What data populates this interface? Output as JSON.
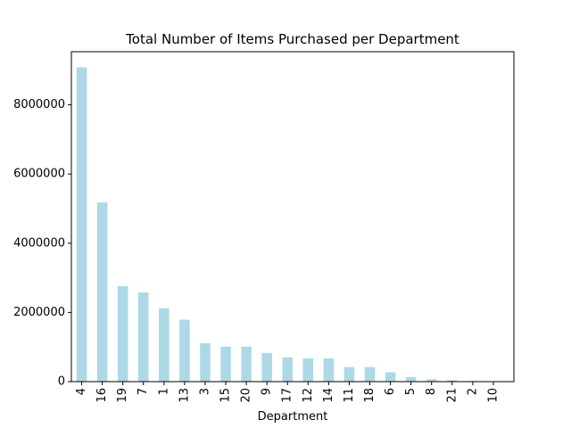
{
  "chart_data": {
    "type": "bar",
    "title": "Total Number of Items Purchased per Department",
    "xlabel": "Department",
    "ylabel": "",
    "categories": [
      "4",
      "16",
      "19",
      "7",
      "1",
      "13",
      "3",
      "15",
      "20",
      "9",
      "17",
      "12",
      "14",
      "11",
      "18",
      "6",
      "5",
      "8",
      "21",
      "2",
      "10"
    ],
    "values": [
      9080000,
      5180000,
      2760000,
      2580000,
      2120000,
      1790000,
      1110000,
      1010000,
      1010000,
      830000,
      700000,
      670000,
      670000,
      420000,
      420000,
      270000,
      130000,
      70000,
      40000,
      20000,
      10000
    ],
    "ylim": [
      0,
      9534000
    ],
    "yticks": [
      0,
      2000000,
      4000000,
      6000000,
      8000000
    ],
    "ytick_labels": [
      "0",
      "2000000",
      "4000000",
      "6000000",
      "8000000"
    ],
    "bar_color": "#add8e6",
    "grid": false,
    "legend": "none"
  }
}
